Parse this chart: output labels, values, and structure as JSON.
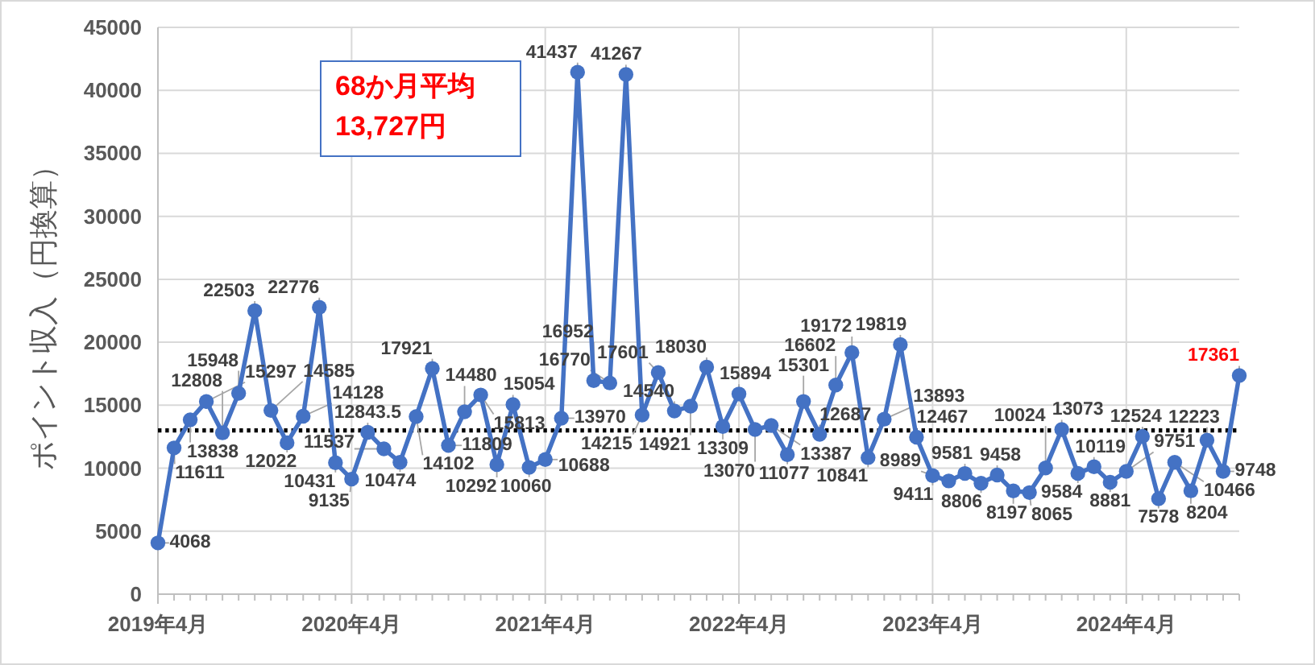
{
  "chart_data": {
    "type": "line",
    "ylabel": "ポイント収入（円換算）",
    "categories": [
      "2019年4月",
      null,
      null,
      null,
      null,
      null,
      null,
      null,
      null,
      null,
      null,
      null,
      "2020年4月",
      null,
      null,
      null,
      null,
      null,
      null,
      null,
      null,
      null,
      null,
      null,
      "2021年4月",
      null,
      null,
      null,
      null,
      null,
      null,
      null,
      null,
      null,
      null,
      null,
      "2022年4月",
      null,
      null,
      null,
      null,
      null,
      null,
      null,
      null,
      null,
      null,
      null,
      "2023年4月",
      null,
      null,
      null,
      null,
      null,
      null,
      null,
      null,
      null,
      null,
      null,
      "2024年4月",
      null,
      null,
      null,
      null,
      null,
      null,
      null
    ],
    "series": [
      {
        "color": "#4472c4",
        "values": [
          4068,
          11611,
          13838,
          15297,
          12808,
          15948,
          22503,
          14585,
          12022,
          14128,
          22776,
          10431,
          9135,
          12843.5,
          11537,
          10474,
          14102,
          17921,
          11809,
          14480,
          15813,
          10292,
          15054,
          10060,
          10688,
          13970,
          41437,
          16952,
          16770,
          41267,
          14215,
          17601,
          14540,
          14921,
          18030,
          13309,
          15894,
          13070,
          13387,
          11077,
          15301,
          12687,
          16602,
          19172,
          10841,
          13893,
          19819,
          12467,
          9411,
          8989,
          9581,
          8806,
          9458,
          8197,
          8065,
          10024,
          13073,
          9584,
          10119,
          8881,
          9751,
          12524,
          7578,
          10466,
          8204,
          12223,
          9748,
          17361
        ]
      }
    ],
    "ylim": [
      0,
      45000
    ],
    "yticks": [
      0,
      5000,
      10000,
      15000,
      20000,
      25000,
      30000,
      35000,
      40000,
      45000
    ],
    "grid": true,
    "marker": "circle",
    "data_labels": true,
    "ref_lines": [
      {
        "axis": "y",
        "value": 13000,
        "line_style": "dotted",
        "color": "#000000"
      }
    ],
    "annotations": [
      "68か月平均\n13,727円"
    ]
  }
}
